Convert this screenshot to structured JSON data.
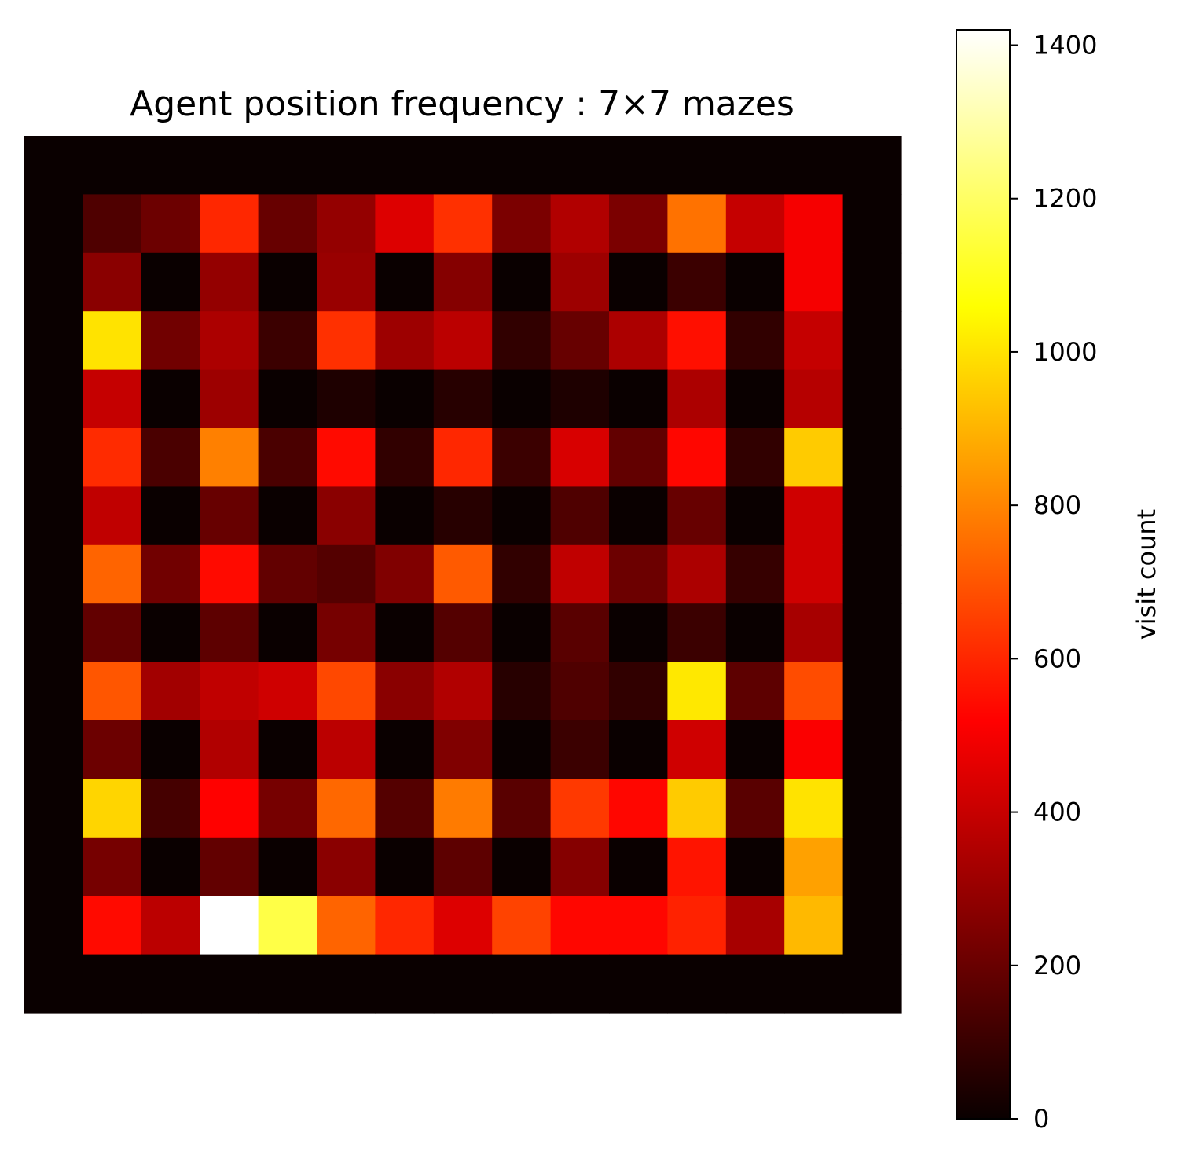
{
  "chart_data": {
    "type": "heatmap",
    "title": "Agent position frequency : 7×7 mazes",
    "colormap": "hot",
    "colorbar": {
      "label": "visit count",
      "range": [
        0,
        1420
      ],
      "ticks": [
        0,
        200,
        400,
        600,
        800,
        1000,
        1200,
        1400
      ]
    },
    "grid_size": [
      15,
      15
    ],
    "axes_visible": false,
    "values": [
      [
        10,
        10,
        10,
        10,
        10,
        10,
        10,
        10,
        10,
        10,
        10,
        10,
        10,
        10,
        10
      ],
      [
        10,
        160,
        220,
        600,
        210,
        300,
        450,
        620,
        250,
        360,
        250,
        760,
        400,
        500,
        10
      ],
      [
        10,
        280,
        0,
        300,
        0,
        310,
        0,
        270,
        0,
        320,
        0,
        120,
        0,
        500,
        10
      ],
      [
        10,
        1000,
        230,
        350,
        120,
        620,
        320,
        380,
        100,
        210,
        350,
        550,
        100,
        400,
        10
      ],
      [
        10,
        400,
        0,
        320,
        0,
        60,
        0,
        80,
        0,
        60,
        0,
        350,
        0,
        370,
        10
      ],
      [
        10,
        610,
        150,
        790,
        150,
        540,
        100,
        600,
        120,
        440,
        200,
        530,
        100,
        950,
        10
      ],
      [
        10,
        390,
        0,
        210,
        0,
        280,
        0,
        80,
        10,
        160,
        0,
        210,
        0,
        420,
        10
      ],
      [
        10,
        730,
        230,
        540,
        200,
        170,
        260,
        710,
        100,
        390,
        220,
        350,
        110,
        420,
        10
      ],
      [
        10,
        200,
        0,
        190,
        0,
        240,
        0,
        170,
        0,
        180,
        0,
        120,
        0,
        340,
        10
      ],
      [
        10,
        700,
        330,
        390,
        420,
        670,
        280,
        360,
        80,
        160,
        100,
        1010,
        190,
        680,
        10
      ],
      [
        10,
        220,
        0,
        360,
        0,
        380,
        0,
        260,
        0,
        120,
        0,
        420,
        0,
        510,
        10
      ],
      [
        10,
        970,
        140,
        520,
        240,
        740,
        170,
        780,
        180,
        640,
        530,
        950,
        180,
        1000,
        10
      ],
      [
        10,
        240,
        0,
        200,
        0,
        280,
        0,
        190,
        0,
        270,
        0,
        560,
        0,
        860,
        10
      ],
      [
        10,
        540,
        380,
        1420,
        1160,
        730,
        600,
        450,
        660,
        530,
        530,
        590,
        340,
        910,
        10
      ],
      [
        10,
        10,
        10,
        10,
        10,
        10,
        10,
        10,
        10,
        10,
        10,
        10,
        10,
        10,
        10
      ]
    ]
  }
}
